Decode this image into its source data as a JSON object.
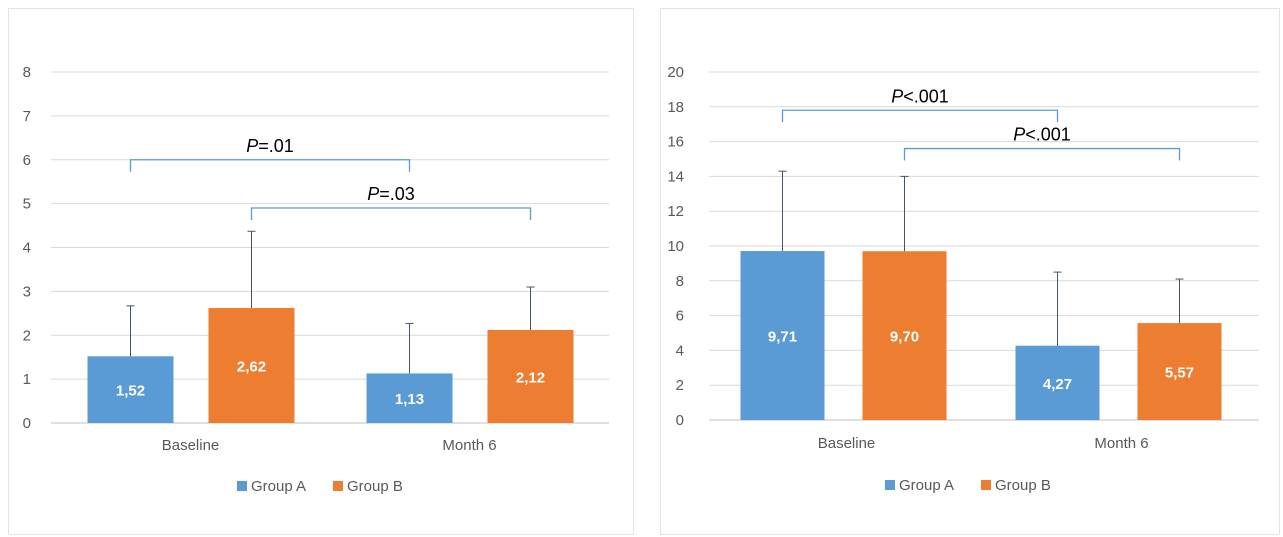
{
  "colors": {
    "group_a": "#5b9bd5",
    "group_b": "#ed7d31",
    "gridline": "#d9d9d9",
    "axis": "#bfbfbf",
    "error_bar": "#44546a",
    "bracket": "#5b9bd5"
  },
  "chart_data": [
    {
      "type": "bar",
      "title": "",
      "xlabel": "",
      "ylabel": "",
      "categories": [
        "Baseline",
        "Month 6"
      ],
      "series": [
        {
          "name": "Group A",
          "values": [
            1.52,
            1.13
          ],
          "error_upper": [
            2.67,
            2.27
          ],
          "data_labels": [
            "1,52",
            "1,13"
          ]
        },
        {
          "name": "Group B",
          "values": [
            2.62,
            2.12
          ],
          "error_upper": [
            4.37,
            3.1
          ],
          "data_labels": [
            "2,62",
            "2,12"
          ]
        }
      ],
      "ylim": [
        0,
        8
      ],
      "yticks": [
        0,
        1,
        2,
        3,
        4,
        5,
        6,
        7,
        8
      ],
      "grid": true,
      "legend": "bottom",
      "annotations": [
        {
          "p": "P",
          "text": "=.01",
          "from": {
            "category": 0,
            "series": 0
          },
          "to": {
            "category": 1,
            "series": 0
          },
          "level": 6.0
        },
        {
          "p": "P",
          "text": "=.03",
          "from": {
            "category": 0,
            "series": 1
          },
          "to": {
            "category": 1,
            "series": 1
          },
          "level": 4.9
        }
      ]
    },
    {
      "type": "bar",
      "title": "",
      "xlabel": "",
      "ylabel": "",
      "categories": [
        "Baseline",
        "Month 6"
      ],
      "series": [
        {
          "name": "Group A",
          "values": [
            9.71,
            4.27
          ],
          "error_upper": [
            14.3,
            8.5
          ],
          "data_labels": [
            "9,71",
            "4,27"
          ]
        },
        {
          "name": "Group B",
          "values": [
            9.7,
            5.57
          ],
          "error_upper": [
            14.0,
            8.1
          ],
          "data_labels": [
            "9,70",
            "5,57"
          ]
        }
      ],
      "ylim": [
        0,
        20
      ],
      "yticks": [
        0,
        2,
        4,
        6,
        8,
        10,
        12,
        14,
        16,
        18,
        20
      ],
      "grid": true,
      "legend": "bottom",
      "annotations": [
        {
          "p": "P",
          "text": "<.001",
          "from": {
            "category": 0,
            "series": 0
          },
          "to": {
            "category": 1,
            "series": 0
          },
          "level": 17.8
        },
        {
          "p": "P",
          "text": "<.001",
          "from": {
            "category": 0,
            "series": 1
          },
          "to": {
            "category": 1,
            "series": 1
          },
          "level": 15.6
        }
      ]
    }
  ]
}
